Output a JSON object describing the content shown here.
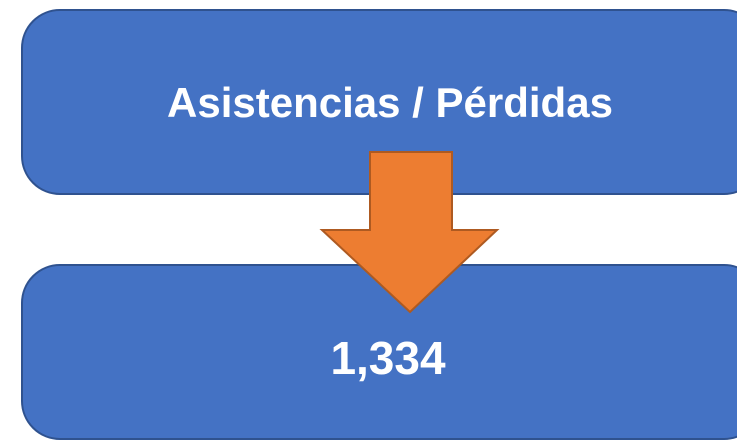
{
  "nodes": [
    {
      "label": "Asistencias / Pérdidas"
    },
    {
      "label": "1,334"
    }
  ]
}
